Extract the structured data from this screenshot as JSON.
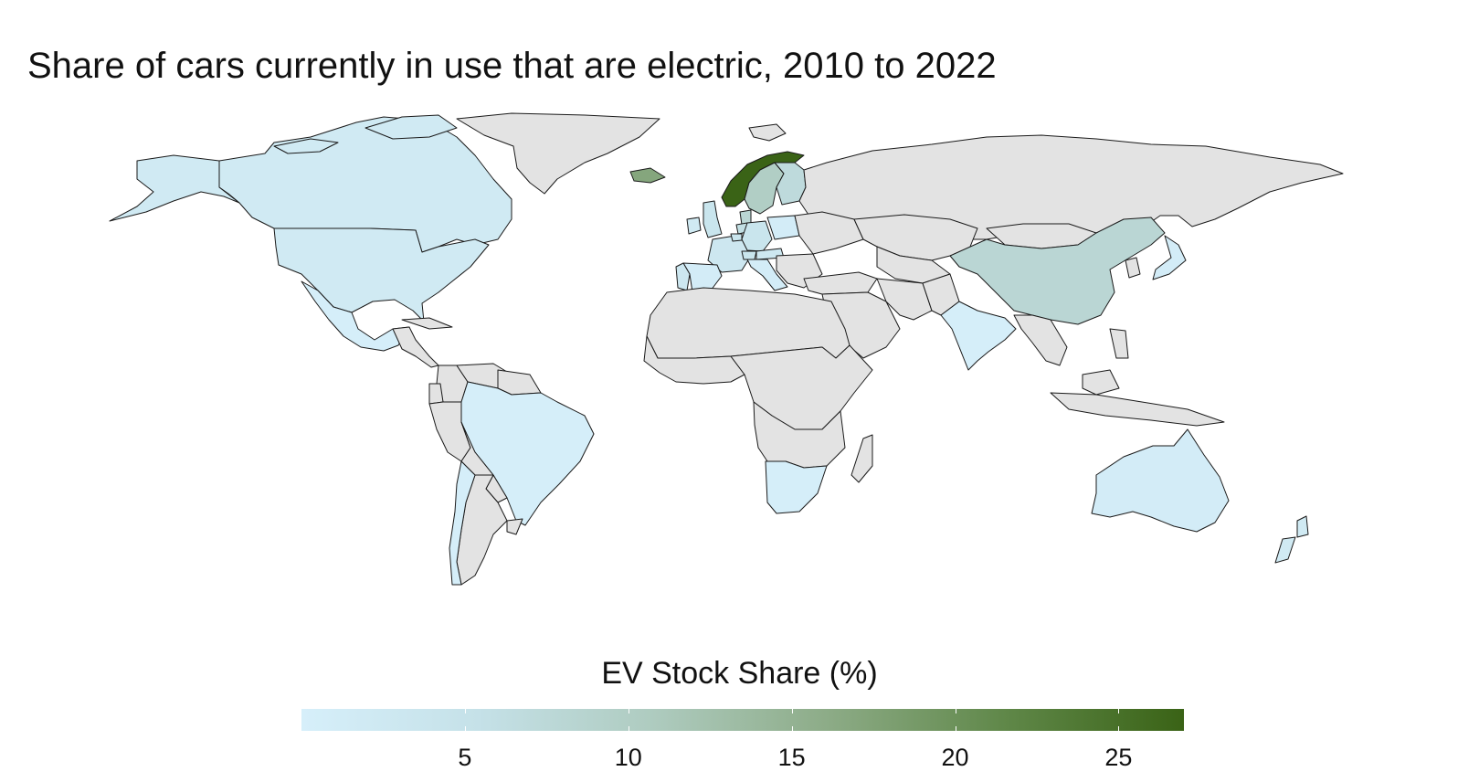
{
  "title": "Share of cars currently in use that are electric, 2010 to 2022",
  "legend": {
    "title": "EV Stock Share (%)",
    "min": 0,
    "max": 27,
    "colors": [
      "#d6effa",
      "#c5e1e8",
      "#aecbbf",
      "#8cab86",
      "#5f8748",
      "#3a6316"
    ],
    "ticks": [
      "5",
      "10",
      "15",
      "20",
      "25"
    ]
  },
  "map": {
    "no_data_color": "#e3e3e3",
    "countries": [
      {
        "name": "Norway",
        "value": 27
      },
      {
        "name": "Iceland",
        "value": 17
      },
      {
        "name": "Sweden",
        "value": 10
      },
      {
        "name": "Finland",
        "value": 7
      },
      {
        "name": "Denmark",
        "value": 8
      },
      {
        "name": "Netherlands",
        "value": 6
      },
      {
        "name": "China",
        "value": 8
      },
      {
        "name": "Germany",
        "value": 4
      },
      {
        "name": "Switzerland",
        "value": 4
      },
      {
        "name": "Belgium",
        "value": 4
      },
      {
        "name": "United Kingdom",
        "value": 4
      },
      {
        "name": "France",
        "value": 3
      },
      {
        "name": "Portugal",
        "value": 3
      },
      {
        "name": "Austria",
        "value": 3
      },
      {
        "name": "Ireland",
        "value": 2
      },
      {
        "name": "Canada",
        "value": 2
      },
      {
        "name": "United States",
        "value": 2
      },
      {
        "name": "Poland",
        "value": 1
      },
      {
        "name": "Spain",
        "value": 1
      },
      {
        "name": "Italy",
        "value": 1
      },
      {
        "name": "Japan",
        "value": 1
      },
      {
        "name": "South Korea",
        "value": 2
      },
      {
        "name": "Australia",
        "value": 1
      },
      {
        "name": "New Zealand",
        "value": 2
      },
      {
        "name": "Mexico",
        "value": 0.3
      },
      {
        "name": "Brazil",
        "value": 0.3
      },
      {
        "name": "Chile",
        "value": 0.3
      },
      {
        "name": "India",
        "value": 0.3
      },
      {
        "name": "South Africa",
        "value": 0.3
      }
    ]
  }
}
